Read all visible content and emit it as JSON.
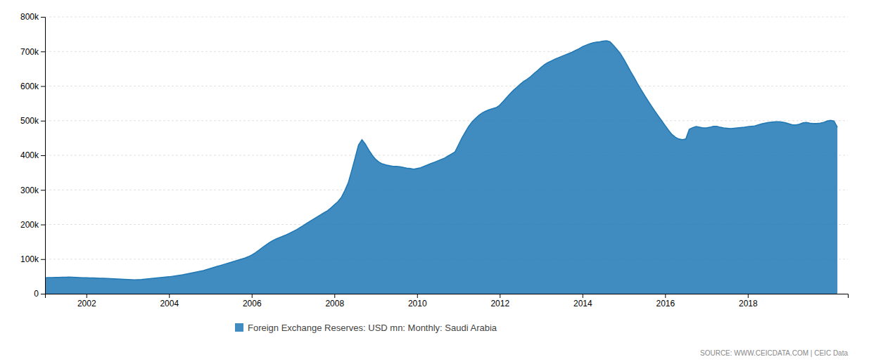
{
  "chart_data": {
    "type": "area",
    "annotations": [
      "SOURCE: WWW.CEICDATA.COM | CEIC Data"
    ],
    "xlim": [
      2001.0,
      2020.42
    ],
    "xticks": [
      2002,
      2004,
      2006,
      2008,
      2010,
      2012,
      2014,
      2016,
      2018
    ],
    "ylim": [
      0,
      800000
    ],
    "yticks": [
      0,
      {
        "value": 100000,
        "label": "100k"
      },
      {
        "value": 200000,
        "label": "200k"
      },
      {
        "value": 300000,
        "label": "300k"
      },
      {
        "value": 400000,
        "label": "400k"
      },
      {
        "value": 500000,
        "label": "500k"
      },
      {
        "value": 600000,
        "label": "600k"
      },
      {
        "value": 700000,
        "label": "700k"
      },
      {
        "value": 800000,
        "label": "800k"
      }
    ],
    "grid": true,
    "legend": "bottom",
    "x": [
      2001,
      2001.0833333333333,
      2001.1666666666667,
      2001.25,
      2001.3333333333333,
      2001.4166666666667,
      2001.5,
      2001.5833333333333,
      2001.6666666666667,
      2001.75,
      2001.8333333333333,
      2001.9166666666667,
      2002,
      2002.0833333333333,
      2002.1666666666667,
      2002.25,
      2002.3333333333333,
      2002.4166666666667,
      2002.5,
      2002.5833333333333,
      2002.6666666666667,
      2002.75,
      2002.8333333333333,
      2002.9166666666667,
      2003,
      2003.0833333333333,
      2003.1666666666667,
      2003.25,
      2003.3333333333333,
      2003.4166666666667,
      2003.5,
      2003.5833333333333,
      2003.6666666666667,
      2003.75,
      2003.8333333333333,
      2003.9166666666667,
      2004,
      2004.0833333333333,
      2004.1666666666667,
      2004.25,
      2004.3333333333333,
      2004.4166666666667,
      2004.5,
      2004.5833333333333,
      2004.6666666666667,
      2004.75,
      2004.8333333333333,
      2004.9166666666667,
      2005,
      2005.0833333333333,
      2005.1666666666667,
      2005.25,
      2005.3333333333333,
      2005.4166666666667,
      2005.5,
      2005.5833333333333,
      2005.6666666666667,
      2005.75,
      2005.8333333333333,
      2005.9166666666667,
      2006,
      2006.0833333333333,
      2006.1666666666667,
      2006.25,
      2006.3333333333333,
      2006.4166666666667,
      2006.5,
      2006.5833333333333,
      2006.6666666666667,
      2006.75,
      2006.8333333333333,
      2006.9166666666667,
      2007,
      2007.0833333333333,
      2007.1666666666667,
      2007.25,
      2007.3333333333333,
      2007.4166666666667,
      2007.5,
      2007.5833333333333,
      2007.6666666666667,
      2007.75,
      2007.8333333333333,
      2007.9166666666667,
      2008,
      2008.0833333333333,
      2008.1666666666667,
      2008.25,
      2008.3333333333333,
      2008.4166666666667,
      2008.5,
      2008.5833333333333,
      2008.6666666666667,
      2008.75,
      2008.8333333333333,
      2008.9166666666667,
      2009,
      2009.0833333333333,
      2009.1666666666667,
      2009.25,
      2009.3333333333333,
      2009.4166666666667,
      2009.5,
      2009.5833333333333,
      2009.6666666666667,
      2009.75,
      2009.8333333333333,
      2009.9166666666667,
      2010,
      2010.0833333333333,
      2010.1666666666667,
      2010.25,
      2010.3333333333333,
      2010.4166666666667,
      2010.5,
      2010.5833333333333,
      2010.6666666666667,
      2010.75,
      2010.8333333333333,
      2010.9166666666667,
      2011,
      2011.0833333333333,
      2011.1666666666667,
      2011.25,
      2011.3333333333333,
      2011.4166666666667,
      2011.5,
      2011.5833333333333,
      2011.6666666666667,
      2011.75,
      2011.8333333333333,
      2011.9166666666667,
      2012,
      2012.0833333333333,
      2012.1666666666667,
      2012.25,
      2012.3333333333333,
      2012.4166666666667,
      2012.5,
      2012.5833333333333,
      2012.6666666666667,
      2012.75,
      2012.8333333333333,
      2012.9166666666667,
      2013,
      2013.0833333333333,
      2013.1666666666667,
      2013.25,
      2013.3333333333333,
      2013.4166666666667,
      2013.5,
      2013.5833333333333,
      2013.6666666666667,
      2013.75,
      2013.8333333333333,
      2013.9166666666667,
      2014,
      2014.0833333333333,
      2014.1666666666667,
      2014.25,
      2014.3333333333333,
      2014.4166666666667,
      2014.5,
      2014.5833333333333,
      2014.6666666666667,
      2014.75,
      2014.8333333333333,
      2014.9166666666667,
      2015,
      2015.0833333333333,
      2015.1666666666667,
      2015.25,
      2015.3333333333333,
      2015.4166666666667,
      2015.5,
      2015.5833333333333,
      2015.6666666666667,
      2015.75,
      2015.8333333333333,
      2015.9166666666667,
      2016,
      2016.0833333333333,
      2016.1666666666667,
      2016.25,
      2016.3333333333333,
      2016.4166666666667,
      2016.5,
      2016.5833333333333,
      2016.6666666666667,
      2016.75,
      2016.8333333333333,
      2016.9166666666667,
      2017,
      2017.0833333333333,
      2017.1666666666667,
      2017.25,
      2017.3333333333333,
      2017.4166666666667,
      2017.5,
      2017.5833333333333,
      2017.6666666666667,
      2017.75,
      2017.8333333333333,
      2017.9166666666667,
      2018,
      2018.0833333333333,
      2018.1666666666667,
      2018.25,
      2018.3333333333333,
      2018.4166666666667,
      2018.5,
      2018.5833333333333,
      2018.6666666666667,
      2018.75,
      2018.8333333333333,
      2018.9166666666667,
      2019,
      2019.0833333333333,
      2019.1666666666667,
      2019.25,
      2019.3333333333333,
      2019.4166666666667,
      2019.5,
      2019.5833333333333,
      2019.6666666666667,
      2019.75,
      2019.8333333333333,
      2019.9166666666667,
      2020,
      2020.0833333333333,
      2020.1666666666667
    ],
    "series": [
      {
        "name": "Foreign Exchange Reserves: USD mn: Monthly: Saudi Arabia",
        "values": [
          46000,
          46500,
          46800,
          47000,
          47200,
          47500,
          47800,
          48000,
          47500,
          47000,
          46500,
          46000,
          46200,
          45800,
          45500,
          45200,
          44800,
          44500,
          44000,
          43500,
          43000,
          42500,
          42000,
          41500,
          41000,
          40500,
          40000,
          40500,
          41000,
          42000,
          43000,
          44000,
          45000,
          46000,
          47000,
          48000,
          49000,
          50500,
          52000,
          53500,
          55000,
          57000,
          59000,
          61000,
          63000,
          65000,
          67000,
          70000,
          73000,
          76000,
          79000,
          82000,
          85000,
          88000,
          91000,
          94000,
          97000,
          100000,
          103000,
          107000,
          112000,
          118000,
          125000,
          133000,
          140000,
          147000,
          153000,
          158000,
          162000,
          166000,
          170000,
          175000,
          180000,
          185000,
          191000,
          197000,
          204000,
          210000,
          216000,
          222000,
          228000,
          234000,
          240000,
          248000,
          257000,
          266000,
          278000,
          298000,
          320000,
          355000,
          392000,
          430000,
          445000,
          432000,
          415000,
          400000,
          388000,
          380000,
          375000,
          372000,
          370000,
          368000,
          368000,
          367000,
          365000,
          363000,
          362000,
          360000,
          362000,
          364000,
          368000,
          372000,
          376000,
          380000,
          384000,
          388000,
          392000,
          398000,
          404000,
          410000,
          430000,
          450000,
          467000,
          484000,
          497000,
          507000,
          516000,
          523000,
          528000,
          532000,
          535000,
          538000,
          545000,
          556000,
          567000,
          578000,
          588000,
          597000,
          606000,
          614000,
          620000,
          628000,
          637000,
          645000,
          654000,
          662000,
          668000,
          673000,
          678000,
          682000,
          686000,
          690000,
          694000,
          698000,
          703000,
          708000,
          714000,
          718000,
          722000,
          725000,
          727000,
          728000,
          730000,
          731000,
          728000,
          718000,
          706000,
          694000,
          678000,
          660000,
          642000,
          625000,
          607000,
          590000,
          574000,
          558000,
          543000,
          528000,
          514000,
          500000,
          486000,
          472000,
          460000,
          452000,
          447000,
          445000,
          447000,
          475000,
          480000,
          483000,
          481000,
          479000,
          479000,
          481000,
          484000,
          484000,
          481000,
          479000,
          478000,
          477000,
          478000,
          479000,
          480000,
          481000,
          483000,
          484000,
          485000,
          488000,
          491000,
          493000,
          495000,
          496000,
          497000,
          497000,
          496000,
          494000,
          491000,
          488000,
          488000,
          490000,
          494000,
          495000,
          493000,
          492000,
          492000,
          493000,
          495000,
          499000,
          501000,
          499000,
          481000
        ]
      }
    ]
  }
}
